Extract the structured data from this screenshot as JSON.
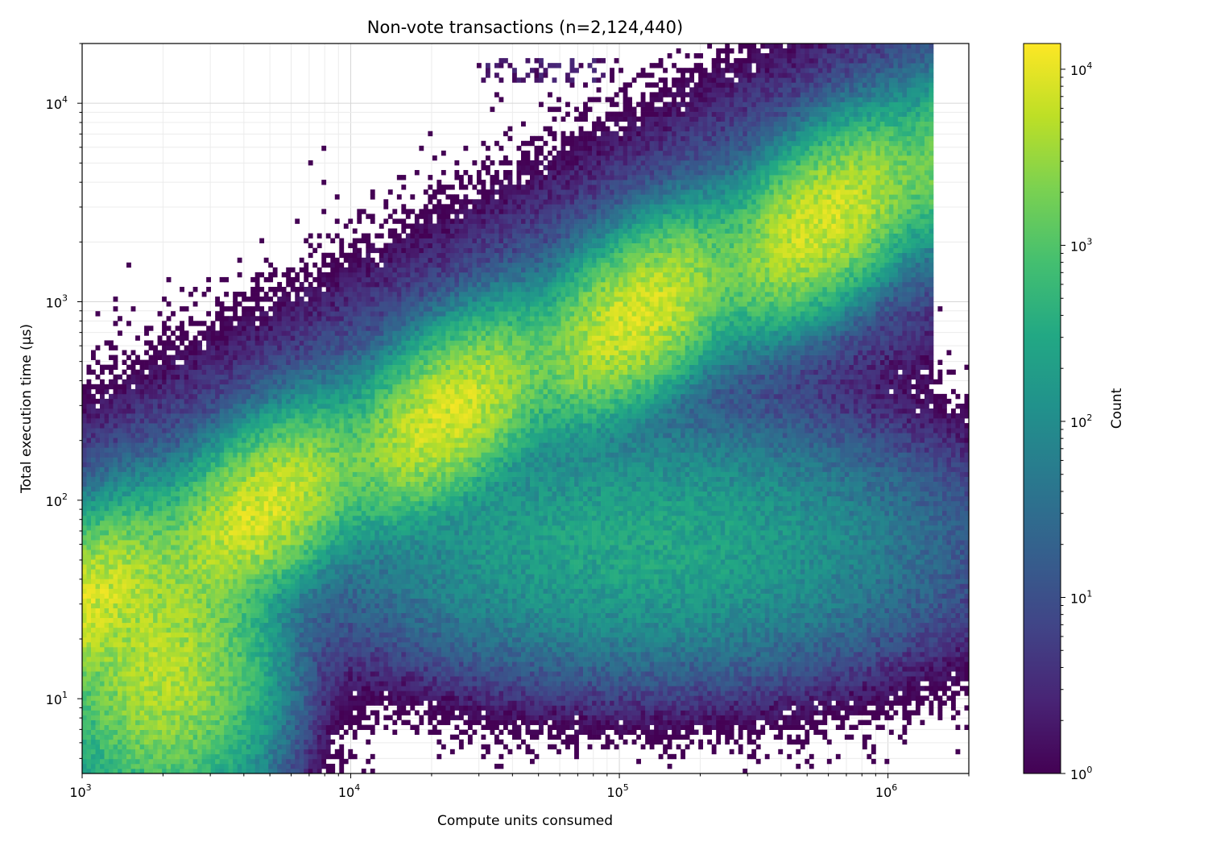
{
  "chart_data": {
    "type": "heatmap",
    "title": "Non-vote transactions (n=2,124,440)",
    "xlabel": "Compute units consumed",
    "ylabel": "Total execution time (µs)",
    "colorbar_label": "Count",
    "x_scale": "log",
    "y_scale": "log",
    "xlim": [
      1000,
      2000000
    ],
    "ylim": [
      4.2,
      20000
    ],
    "x_ticks": [
      {
        "value": 1000,
        "base": "10",
        "exp": "3"
      },
      {
        "value": 10000,
        "base": "10",
        "exp": "4"
      },
      {
        "value": 100000,
        "base": "10",
        "exp": "5"
      },
      {
        "value": 1000000,
        "base": "10",
        "exp": "6"
      }
    ],
    "y_ticks": [
      {
        "value": 10,
        "base": "10",
        "exp": "1"
      },
      {
        "value": 100,
        "base": "10",
        "exp": "2"
      },
      {
        "value": 1000,
        "base": "10",
        "exp": "3"
      },
      {
        "value": 10000,
        "base": "10",
        "exp": "4"
      }
    ],
    "colorbar": {
      "scale": "log",
      "range": [
        1,
        14000
      ],
      "colormap": "viridis",
      "ticks": [
        {
          "value": 1,
          "base": "10",
          "exp": "0"
        },
        {
          "value": 10,
          "base": "10",
          "exp": "1"
        },
        {
          "value": 100,
          "base": "10",
          "exp": "2"
        },
        {
          "value": 1000,
          "base": "10",
          "exp": "3"
        },
        {
          "value": 10000,
          "base": "10",
          "exp": "4"
        }
      ]
    },
    "grid": true,
    "density_features": [
      {
        "name": "main diagonal band",
        "cu_range": [
          1000,
          1400000
        ],
        "time_at_start": 30,
        "time_at_end": 4800,
        "peak_count": 8000
      },
      {
        "name": "lower cluster",
        "cu_center": 120000,
        "time_center": 60,
        "peak_count": 300
      },
      {
        "name": "low-cu bright region",
        "cu_center": 2000,
        "time_center": 15,
        "peak_count": 5000
      },
      {
        "name": "upper sparse outliers",
        "cu_range": [
          30000,
          90000
        ],
        "time_range": [
          13000,
          17000
        ],
        "peak_count": 2
      }
    ],
    "colors": {
      "viridis_low": "#440154",
      "viridis_mid": "#21918c",
      "viridis_high": "#fde725"
    }
  }
}
